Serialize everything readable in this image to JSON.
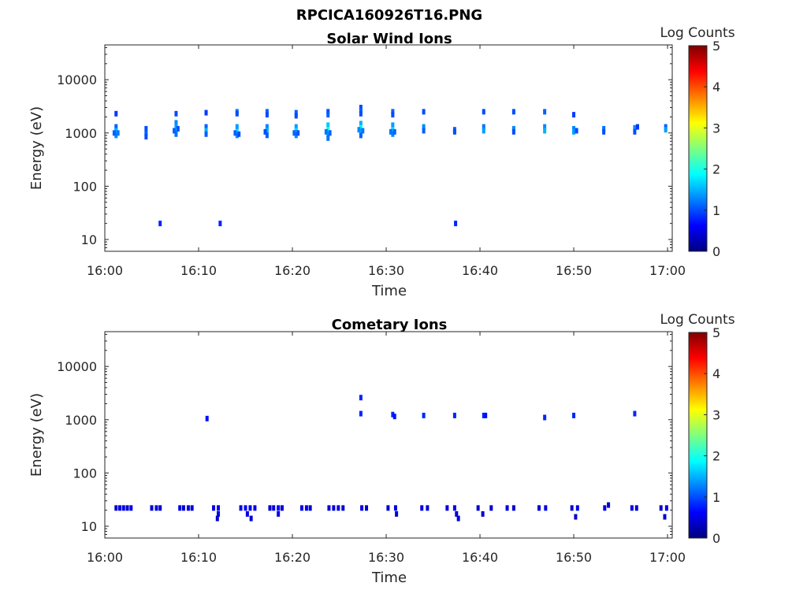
{
  "figure_title": "RPCICA160926T16.PNG",
  "colormap": [
    "#00007f",
    "#0000ff",
    "#007fff",
    "#00ffff",
    "#7fff7f",
    "#ffff00",
    "#ff7f00",
    "#ff0000",
    "#7f0000"
  ],
  "chart_data": [
    {
      "type": "heatmap",
      "title": "Solar Wind Ions",
      "xlabel": "Time",
      "ylabel": "Energy (eV)",
      "x_ticks": [
        "16:00",
        "16:10",
        "16:20",
        "16:30",
        "16:40",
        "16:50",
        "17:00"
      ],
      "y_ticks": [
        "10",
        "100",
        "1000",
        "10000"
      ],
      "y_scale": "log",
      "ylim": [
        6,
        45000
      ],
      "xlim_minutes": [
        0,
        60.5
      ],
      "colorbar": {
        "label": "Log Counts",
        "ticks": [
          "0",
          "1",
          "2",
          "3",
          "4",
          "5"
        ],
        "range": [
          0,
          5
        ]
      },
      "cells": [
        [
          1.2,
          2300,
          0.9
        ],
        [
          1.2,
          1300,
          1.1
        ],
        [
          1.2,
          1100,
          1.5
        ],
        [
          1.2,
          900,
          1.3
        ],
        [
          1.0,
          1000,
          1.1
        ],
        [
          1.4,
          1000,
          1.2
        ],
        [
          4.4,
          1200,
          1.0
        ],
        [
          4.4,
          1000,
          1.1
        ],
        [
          4.4,
          850,
          1.0
        ],
        [
          7.6,
          2300,
          1.0
        ],
        [
          7.6,
          1550,
          1.3
        ],
        [
          7.6,
          1300,
          1.4
        ],
        [
          7.6,
          1100,
          1.7
        ],
        [
          7.6,
          950,
          1.2
        ],
        [
          7.4,
          1100,
          1.1
        ],
        [
          7.8,
          1200,
          1.0
        ],
        [
          10.8,
          2400,
          0.9
        ],
        [
          10.8,
          1300,
          1.1
        ],
        [
          10.8,
          1100,
          1.5
        ],
        [
          10.8,
          950,
          1.1
        ],
        [
          14.1,
          2500,
          1.2
        ],
        [
          14.1,
          2300,
          1.0
        ],
        [
          14.1,
          1300,
          1.4
        ],
        [
          14.1,
          1050,
          1.8
        ],
        [
          14.1,
          900,
          1.3
        ],
        [
          13.9,
          1000,
          1.1
        ],
        [
          14.3,
          950,
          1.0
        ],
        [
          17.3,
          2500,
          1.1
        ],
        [
          17.3,
          2200,
          1.0
        ],
        [
          17.3,
          1300,
          1.3
        ],
        [
          17.3,
          1100,
          1.5
        ],
        [
          17.3,
          900,
          1.1
        ],
        [
          17.1,
          1050,
          1.0
        ],
        [
          20.4,
          2400,
          1.1
        ],
        [
          20.4,
          2100,
          1.0
        ],
        [
          20.4,
          1300,
          1.4
        ],
        [
          20.4,
          1100,
          1.7
        ],
        [
          20.4,
          900,
          1.3
        ],
        [
          20.2,
          1000,
          1.1
        ],
        [
          20.6,
          1000,
          1.0
        ],
        [
          23.8,
          2500,
          1.0
        ],
        [
          23.8,
          2200,
          1.1
        ],
        [
          23.8,
          1400,
          1.6
        ],
        [
          23.8,
          1150,
          2.0
        ],
        [
          23.8,
          950,
          1.5
        ],
        [
          23.8,
          800,
          1.2
        ],
        [
          23.6,
          1050,
          1.2
        ],
        [
          24.0,
          1000,
          1.1
        ],
        [
          27.3,
          3000,
          1.0
        ],
        [
          27.3,
          2600,
          1.1
        ],
        [
          27.3,
          2300,
          1.0
        ],
        [
          27.3,
          1500,
          1.5
        ],
        [
          27.3,
          1250,
          1.9
        ],
        [
          27.3,
          1050,
          1.6
        ],
        [
          27.3,
          900,
          1.1
        ],
        [
          27.1,
          1150,
          1.3
        ],
        [
          27.5,
          1100,
          1.2
        ],
        [
          30.7,
          2500,
          1.1
        ],
        [
          30.7,
          2200,
          1.0
        ],
        [
          30.7,
          1400,
          1.4
        ],
        [
          30.7,
          1150,
          1.7
        ],
        [
          30.7,
          950,
          1.3
        ],
        [
          30.5,
          1050,
          1.2
        ],
        [
          30.9,
          1050,
          1.1
        ],
        [
          34.0,
          2500,
          1.0
        ],
        [
          34.0,
          1300,
          1.3
        ],
        [
          34.0,
          1100,
          1.1
        ],
        [
          37.3,
          1150,
          1.1
        ],
        [
          37.3,
          1050,
          1.0
        ],
        [
          40.4,
          2500,
          1.0
        ],
        [
          40.4,
          1300,
          1.2
        ],
        [
          40.4,
          1100,
          1.4
        ],
        [
          43.6,
          2500,
          1.0
        ],
        [
          43.6,
          1200,
          1.3
        ],
        [
          43.6,
          1050,
          1.0
        ],
        [
          46.9,
          2500,
          1.1
        ],
        [
          46.9,
          1300,
          1.3
        ],
        [
          46.9,
          1100,
          1.5
        ],
        [
          50.0,
          2200,
          0.9
        ],
        [
          50.0,
          1200,
          1.3
        ],
        [
          50.0,
          1050,
          1.4
        ],
        [
          50.3,
          1100,
          1.0
        ],
        [
          53.2,
          1200,
          1.2
        ],
        [
          53.2,
          1050,
          1.0
        ],
        [
          56.5,
          1250,
          1.3
        ],
        [
          56.5,
          1050,
          1.0
        ],
        [
          56.8,
          1300,
          0.9
        ],
        [
          59.8,
          1300,
          1.1
        ],
        [
          59.8,
          1150,
          1.4
        ],
        [
          5.9,
          20,
          0.8
        ],
        [
          12.3,
          20,
          0.8
        ],
        [
          37.4,
          20,
          0.8
        ]
      ]
    },
    {
      "type": "heatmap",
      "title": "Cometary Ions",
      "xlabel": "Time",
      "ylabel": "Energy (eV)",
      "x_ticks": [
        "16:00",
        "16:10",
        "16:20",
        "16:30",
        "16:40",
        "16:50",
        "17:00"
      ],
      "y_ticks": [
        "10",
        "100",
        "1000",
        "10000"
      ],
      "y_scale": "log",
      "ylim": [
        6,
        45000
      ],
      "xlim_minutes": [
        0,
        60.5
      ],
      "colorbar": {
        "label": "Log Counts",
        "ticks": [
          "0",
          "1",
          "2",
          "3",
          "4",
          "5"
        ],
        "range": [
          0,
          5
        ]
      },
      "cells": [
        [
          27.3,
          2600,
          0.8
        ],
        [
          27.3,
          1300,
          0.8
        ],
        [
          10.9,
          1050,
          0.7
        ],
        [
          30.7,
          1250,
          0.8
        ],
        [
          30.9,
          1150,
          0.7
        ],
        [
          34.0,
          1200,
          0.8
        ],
        [
          37.3,
          1200,
          0.8
        ],
        [
          40.4,
          1200,
          0.8
        ],
        [
          40.6,
          1200,
          0.7
        ],
        [
          46.9,
          1100,
          0.8
        ],
        [
          50.0,
          1200,
          0.8
        ],
        [
          56.5,
          1300,
          0.8
        ],
        [
          1.2,
          22,
          0.4
        ],
        [
          1.6,
          22,
          0.5
        ],
        [
          2.0,
          22,
          0.5
        ],
        [
          2.4,
          22,
          0.4
        ],
        [
          2.8,
          22,
          0.5
        ],
        [
          5.0,
          22,
          0.4
        ],
        [
          5.5,
          22,
          0.5
        ],
        [
          5.9,
          22,
          0.4
        ],
        [
          8.0,
          22,
          0.5
        ],
        [
          8.4,
          22,
          0.4
        ],
        [
          8.9,
          22,
          0.5
        ],
        [
          9.3,
          22,
          0.4
        ],
        [
          11.6,
          22,
          0.5
        ],
        [
          12.1,
          22,
          0.6
        ],
        [
          12.1,
          17,
          0.5
        ],
        [
          12.0,
          14,
          0.4
        ],
        [
          14.5,
          22,
          0.5
        ],
        [
          15.0,
          22,
          0.6
        ],
        [
          15.2,
          17,
          0.5
        ],
        [
          15.5,
          22,
          0.5
        ],
        [
          15.6,
          14,
          0.4
        ],
        [
          16.0,
          22,
          0.5
        ],
        [
          17.6,
          22,
          0.4
        ],
        [
          18.0,
          22,
          0.5
        ],
        [
          18.5,
          22,
          0.6
        ],
        [
          18.5,
          17,
          0.5
        ],
        [
          18.9,
          22,
          0.4
        ],
        [
          21.0,
          22,
          0.5
        ],
        [
          21.5,
          22,
          0.5
        ],
        [
          21.9,
          22,
          0.4
        ],
        [
          23.9,
          22,
          0.5
        ],
        [
          24.4,
          22,
          0.4
        ],
        [
          24.9,
          22,
          0.5
        ],
        [
          25.4,
          22,
          0.4
        ],
        [
          27.4,
          22,
          0.5
        ],
        [
          27.9,
          22,
          0.4
        ],
        [
          30.2,
          22,
          0.4
        ],
        [
          31.0,
          22,
          0.5
        ],
        [
          31.1,
          17,
          0.4
        ],
        [
          33.8,
          22,
          0.5
        ],
        [
          34.4,
          22,
          0.4
        ],
        [
          36.5,
          22,
          0.4
        ],
        [
          37.3,
          22,
          0.5
        ],
        [
          37.5,
          17,
          0.4
        ],
        [
          37.7,
          14,
          0.4
        ],
        [
          39.8,
          22,
          0.4
        ],
        [
          40.3,
          17,
          0.4
        ],
        [
          41.2,
          22,
          0.4
        ],
        [
          42.9,
          22,
          0.5
        ],
        [
          43.6,
          22,
          0.4
        ],
        [
          46.3,
          22,
          0.4
        ],
        [
          47.0,
          22,
          0.5
        ],
        [
          49.8,
          22,
          0.4
        ],
        [
          50.4,
          22,
          0.5
        ],
        [
          50.2,
          15,
          0.4
        ],
        [
          53.3,
          22,
          0.5
        ],
        [
          53.7,
          25,
          0.4
        ],
        [
          56.2,
          22,
          0.5
        ],
        [
          56.7,
          22,
          0.4
        ],
        [
          59.3,
          22,
          0.4
        ],
        [
          59.9,
          22,
          0.5
        ],
        [
          59.7,
          15,
          0.4
        ]
      ]
    }
  ]
}
